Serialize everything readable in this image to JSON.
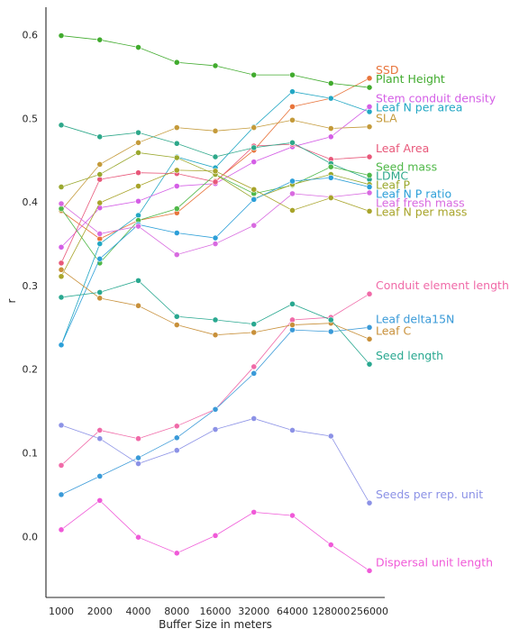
{
  "chart_data": {
    "type": "line",
    "title": "",
    "xlabel": "Buffer Size in meters",
    "ylabel": "r",
    "x": [
      "1000",
      "2000",
      "4000",
      "8000",
      "16000",
      "32000",
      "64000",
      "128000",
      "256000"
    ],
    "ylim": [
      -0.073,
      0.633
    ],
    "yticks": [
      "0.0",
      "0.1",
      "0.2",
      "0.3",
      "0.4",
      "0.5",
      "0.6"
    ],
    "grid": false,
    "legend": "labels at line ends (right)",
    "series": [
      {
        "name": "SSD",
        "color": "#e8743b",
        "values": [
          0.389,
          0.356,
          0.378,
          0.387,
          0.425,
          0.462,
          0.514,
          0.524,
          0.548
        ]
      },
      {
        "name": "Plant Height",
        "color": "#41ab2e",
        "values": [
          0.599,
          0.594,
          0.585,
          0.567,
          0.563,
          0.552,
          0.552,
          0.542,
          0.537
        ]
      },
      {
        "name": "Leaf N per area",
        "color": "#23a7c4",
        "values": [
          0.229,
          0.35,
          0.384,
          0.454,
          0.441,
          0.49,
          0.532,
          0.524,
          0.508
        ]
      },
      {
        "name": "Stem conduit density",
        "color": "#d45ee6",
        "values": [
          0.346,
          0.393,
          0.401,
          0.419,
          0.422,
          0.448,
          0.466,
          0.478,
          0.514
        ]
      },
      {
        "name": "SLA",
        "color": "#c49a3a",
        "values": [
          0.39,
          0.445,
          0.471,
          0.489,
          0.485,
          0.489,
          0.498,
          0.488,
          0.49
        ]
      },
      {
        "name": "Leaf Area",
        "color": "#e8587a",
        "values": [
          0.327,
          0.427,
          0.435,
          0.434,
          0.424,
          0.467,
          0.469,
          0.451,
          0.454
        ]
      },
      {
        "name": "LDMC",
        "color": "#2ea88a",
        "values": [
          0.492,
          0.478,
          0.483,
          0.47,
          0.454,
          0.465,
          0.471,
          0.446,
          0.427
        ]
      },
      {
        "name": "Seed mass",
        "color": "#4fb848",
        "values": [
          0.392,
          0.327,
          0.378,
          0.392,
          0.433,
          0.41,
          0.42,
          0.442,
          0.432
        ]
      },
      {
        "name": "Leaf P",
        "color": "#9aa82e",
        "values": [
          0.418,
          0.433,
          0.459,
          0.453,
          0.433,
          0.404,
          0.421,
          0.433,
          0.421
        ]
      },
      {
        "name": "Leaf N P ratio",
        "color": "#2c9fd8",
        "values": [
          0.229,
          0.332,
          0.373,
          0.363,
          0.357,
          0.403,
          0.425,
          0.429,
          0.418
        ]
      },
      {
        "name": "Leaf fresh mass",
        "color": "#d86ae0",
        "values": [
          0.398,
          0.362,
          0.371,
          0.337,
          0.35,
          0.372,
          0.41,
          0.406,
          0.411
        ]
      },
      {
        "name": "Leaf N per mass",
        "color": "#a8a42a",
        "values": [
          0.311,
          0.399,
          0.419,
          0.438,
          0.437,
          0.415,
          0.39,
          0.405,
          0.389
        ]
      },
      {
        "name": "Conduit element length",
        "color": "#f06aa8",
        "values": [
          0.085,
          0.127,
          0.117,
          0.132,
          0.152,
          0.203,
          0.259,
          0.262,
          0.29
        ]
      },
      {
        "name": "Leaf delta15N",
        "color": "#3a9ad8",
        "values": [
          0.05,
          0.072,
          0.094,
          0.118,
          0.152,
          0.195,
          0.247,
          0.245,
          0.25
        ]
      },
      {
        "name": "Leaf C",
        "color": "#c8903a",
        "values": [
          0.319,
          0.285,
          0.276,
          0.253,
          0.241,
          0.244,
          0.253,
          0.255,
          0.236
        ]
      },
      {
        "name": "Seed length",
        "color": "#29a890",
        "values": [
          0.286,
          0.292,
          0.306,
          0.263,
          0.259,
          0.254,
          0.278,
          0.259,
          0.206
        ]
      },
      {
        "name": "Seeds per rep. unit",
        "color": "#8c92e6",
        "values": [
          0.133,
          0.117,
          0.087,
          0.103,
          0.128,
          0.141,
          0.127,
          0.12,
          0.04
        ]
      },
      {
        "name": "Dispersal unit length",
        "color": "#f05ad8",
        "values": [
          0.008,
          0.043,
          -0.001,
          -0.02,
          0.001,
          0.029,
          0.025,
          -0.01,
          -0.041
        ]
      }
    ]
  }
}
